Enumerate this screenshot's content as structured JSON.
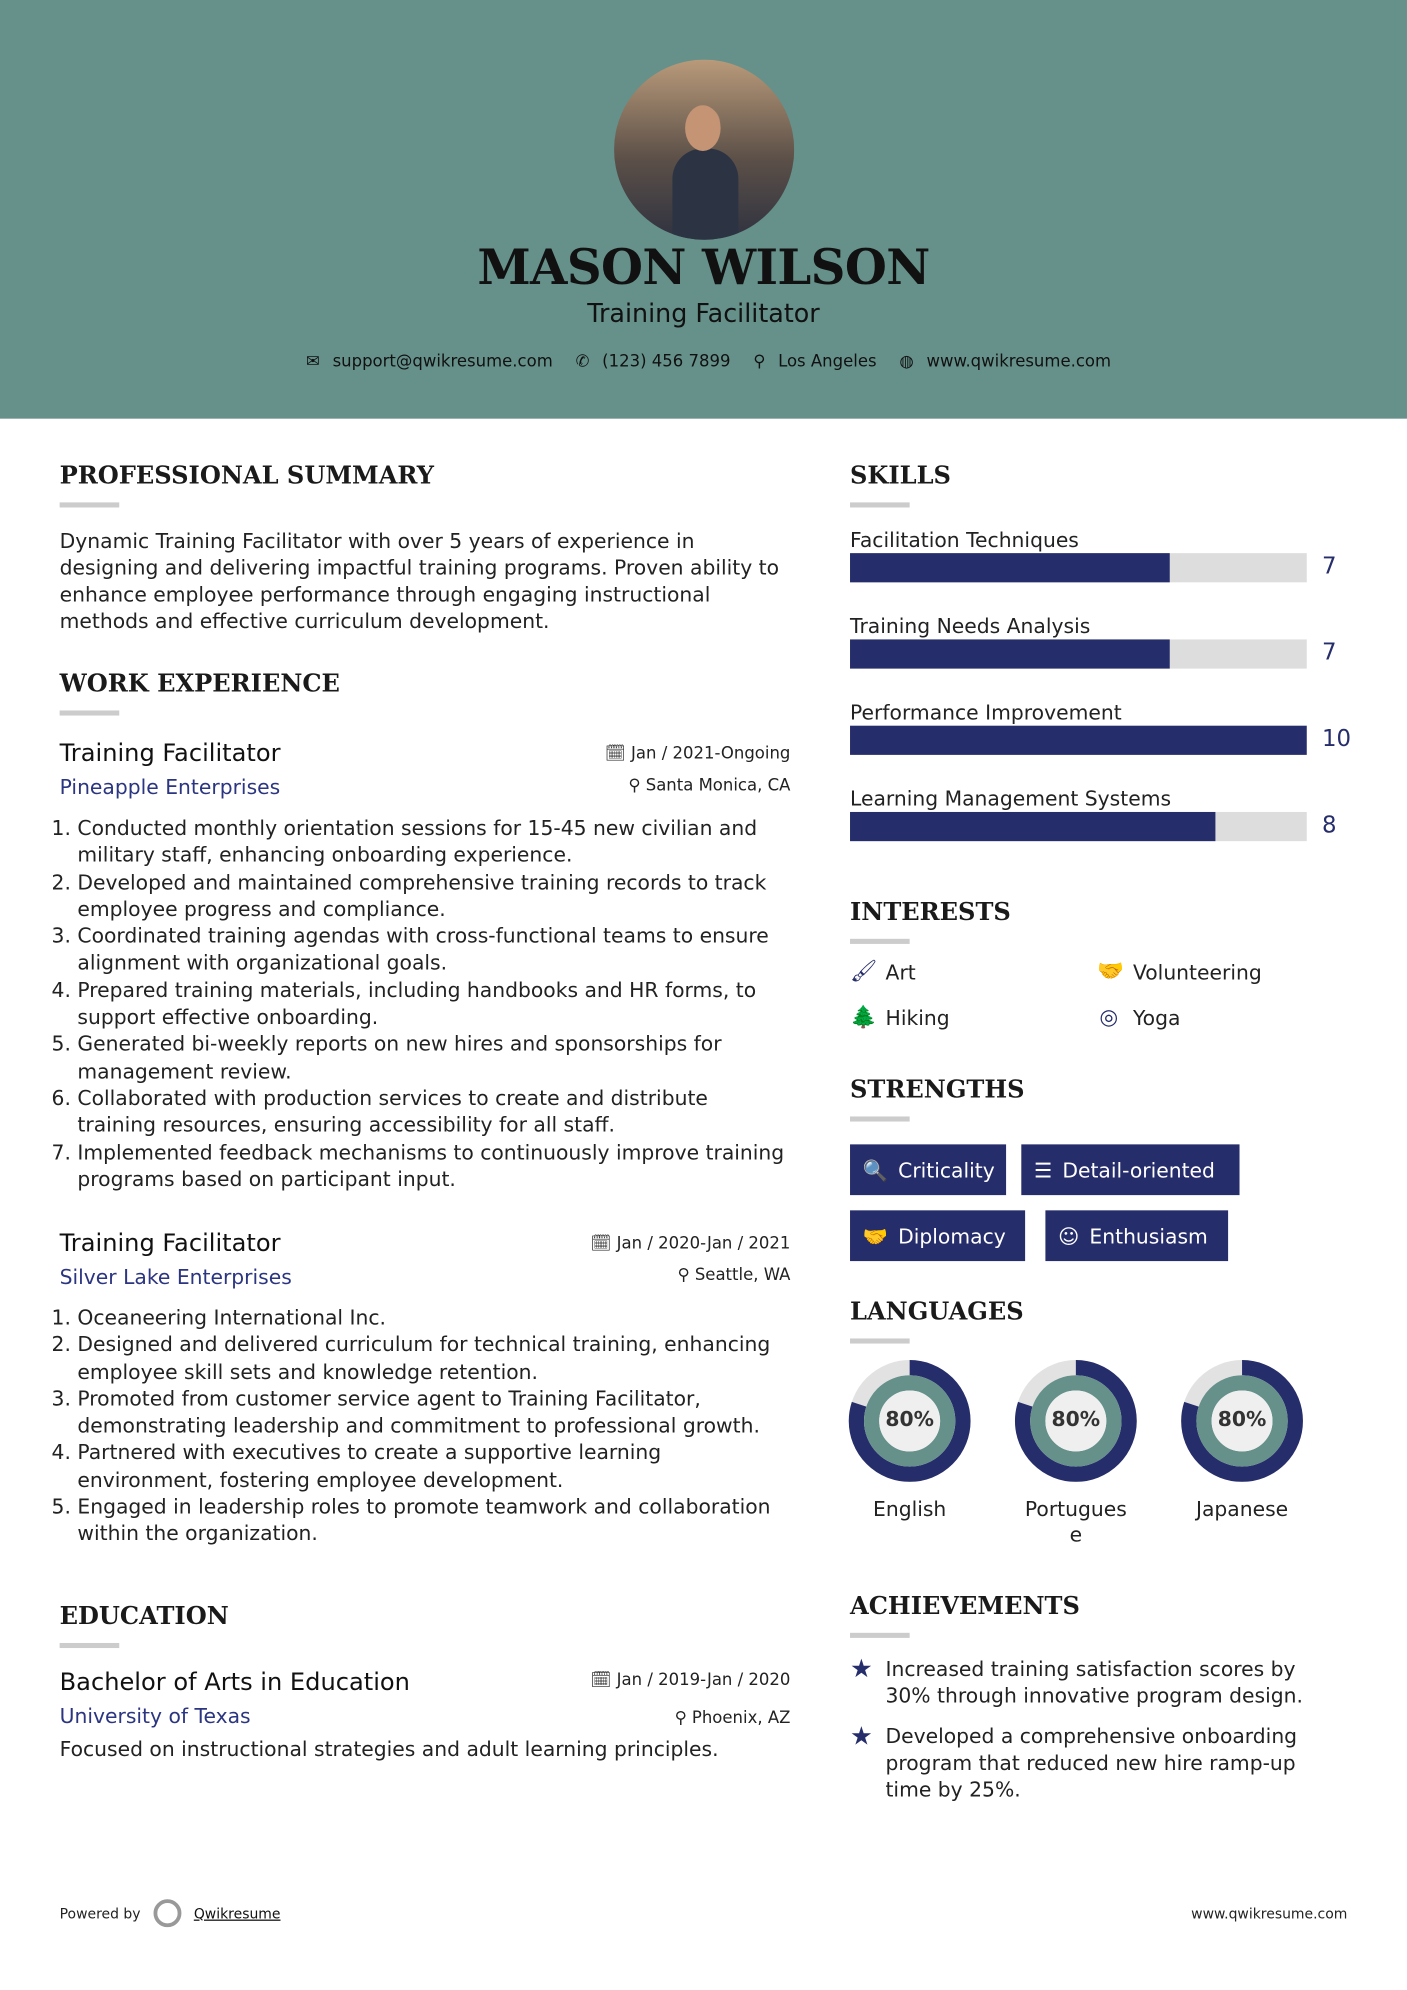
{
  "header": {
    "name": "MASON WILSON",
    "title": "Training Facilitator",
    "contact": [
      {
        "icon": "envelope-icon",
        "glyph": "✉",
        "text": "support@qwikresume.com"
      },
      {
        "icon": "phone-icon",
        "glyph": "✆",
        "text": "(123) 456 7899"
      },
      {
        "icon": "map-pin-icon",
        "glyph": "⚲",
        "text": "Los Angeles"
      },
      {
        "icon": "globe-icon",
        "glyph": "◍",
        "text": "www.qwikresume.com"
      }
    ]
  },
  "summary": {
    "heading": "PROFESSIONAL SUMMARY",
    "text": "Dynamic Training Facilitator with over 5 years of experience in designing and delivering impactful training programs. Proven ability to enhance employee performance through engaging instructional methods and effective curriculum development."
  },
  "work": {
    "heading": "WORK EXPERIENCE",
    "jobs": [
      {
        "title": "Training Facilitator",
        "company": "Pineapple Enterprises",
        "date": "Jan / 2021-Ongoing",
        "location": "Santa Monica, CA",
        "items": [
          "Conducted monthly orientation sessions for 15-45 new civilian and military staff, enhancing onboarding experience.",
          "Developed and maintained comprehensive training records to track employee progress and compliance.",
          "Coordinated training agendas with cross-functional teams to ensure alignment with organizational goals.",
          "Prepared training materials, including handbooks and HR forms, to support effective onboarding.",
          "Generated bi-weekly reports on new hires and sponsorships for management review.",
          "Collaborated with production services to create and distribute training resources, ensuring accessibility for all staff.",
          "Implemented feedback mechanisms to continuously improve training programs based on participant input."
        ]
      },
      {
        "title": "Training Facilitator",
        "company": "Silver Lake Enterprises",
        "date": "Jan / 2020-Jan / 2021",
        "location": "Seattle, WA",
        "items": [
          "Oceaneering International Inc.",
          "Designed and delivered curriculum for technical training, enhancing employee skill sets and knowledge retention.",
          "Promoted from customer service agent to Training Facilitator, demonstrating leadership and commitment to professional growth.",
          "Partnered with executives to create a supportive learning environment, fostering employee development.",
          "Engaged in leadership roles to promote teamwork and collaboration within the organization."
        ]
      }
    ]
  },
  "education": {
    "heading": "EDUCATION",
    "degree": "Bachelor of Arts in Education",
    "school": "University of Texas",
    "date": "Jan / 2019-Jan / 2020",
    "location": "Phoenix, AZ",
    "text": "Focused on instructional strategies and adult learning principles."
  },
  "skills": {
    "heading": "SKILLS",
    "max": 10,
    "items": [
      {
        "label": "Facilitation Techniques",
        "value": 7
      },
      {
        "label": "Training Needs Analysis",
        "value": 7
      },
      {
        "label": "Performance Improvement",
        "value": 10
      },
      {
        "label": "Learning Management Systems",
        "value": 8
      }
    ]
  },
  "interests": {
    "heading": "INTERESTS",
    "items": [
      {
        "icon": "paintbrush-icon",
        "glyph": "🖌",
        "label": "Art"
      },
      {
        "icon": "handshake-icon",
        "glyph": "🤝",
        "label": "Volunteering"
      },
      {
        "icon": "tree-icon",
        "glyph": "🌲",
        "label": "Hiking"
      },
      {
        "icon": "lifebuoy-icon",
        "glyph": "◎",
        "label": "Yoga"
      }
    ]
  },
  "strengths": {
    "heading": "STRENGTHS",
    "items": [
      {
        "icon": "search-icon",
        "glyph": "🔍",
        "label": "Criticality"
      },
      {
        "icon": "list-icon",
        "glyph": "☰",
        "label": "Detail-oriented"
      },
      {
        "icon": "handshake-icon",
        "glyph": "🤝",
        "label": "Diplomacy"
      },
      {
        "icon": "smile-icon",
        "glyph": "☺",
        "label": "Enthusiasm"
      }
    ]
  },
  "languages": {
    "heading": "LANGUAGES",
    "items": [
      {
        "label": "English",
        "percent": 80,
        "text": "80%"
      },
      {
        "label": "Portuguese",
        "percent": 80,
        "text": "80%"
      },
      {
        "label": "Japanese",
        "percent": 80,
        "text": "80%"
      }
    ]
  },
  "achievements": {
    "heading": "ACHIEVEMENTS",
    "items": [
      "Increased training satisfaction scores by 30% through innovative program design.",
      "Developed a comprehensive onboarding program that reduced new hire ramp-up time by 25%."
    ]
  },
  "footer": {
    "powered_by": "Powered by",
    "brand": "Qwikresume",
    "url": "www.qwikresume.com"
  },
  "colors": {
    "header_bg": "#66918a",
    "accent": "#262d6b",
    "track": "#dddddd"
  }
}
